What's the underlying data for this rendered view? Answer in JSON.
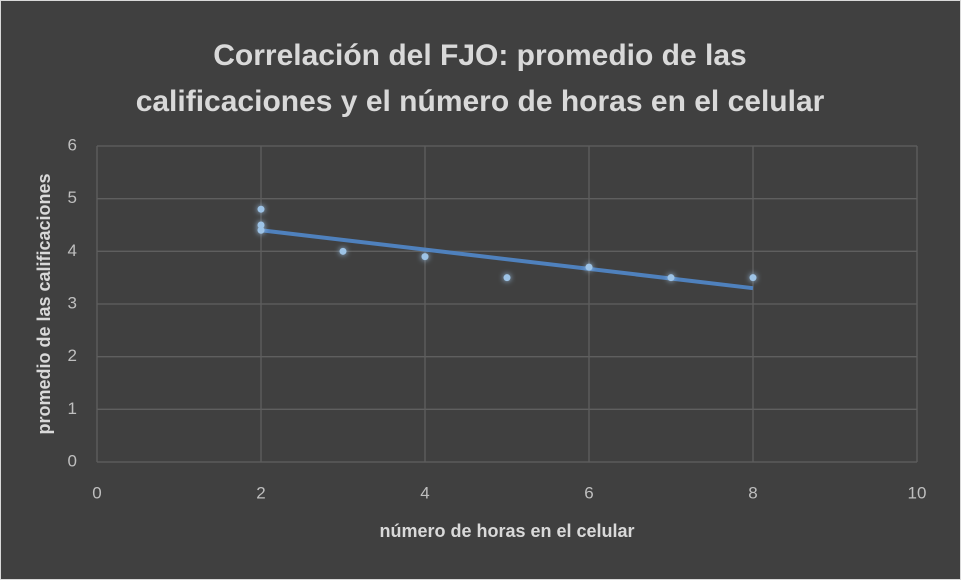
{
  "chart_data": {
    "type": "scatter",
    "title": [
      "Correlación del FJO: promedio de las",
      "calificaciones y el número de horas en el celular"
    ],
    "x_label": "número de horas en el celular",
    "y_label": "promedio de las calificaciones",
    "x": [
      2,
      2,
      2,
      3,
      4,
      5,
      6,
      7,
      8
    ],
    "values": [
      4.8,
      4.5,
      4.4,
      4.0,
      3.9,
      3.5,
      3.7,
      3.5,
      3.5
    ],
    "color": "#9dc3e6",
    "trendline": {
      "x": [
        2,
        8
      ],
      "values": [
        4.4,
        3.3
      ],
      "color": "#4f81bd"
    },
    "xlim": [
      0,
      10
    ],
    "xticks": [
      0,
      2,
      4,
      6,
      8,
      10
    ],
    "ylim": [
      0,
      6
    ],
    "yticks": [
      0,
      1,
      2,
      3,
      4,
      5,
      6
    ],
    "grid": true
  }
}
